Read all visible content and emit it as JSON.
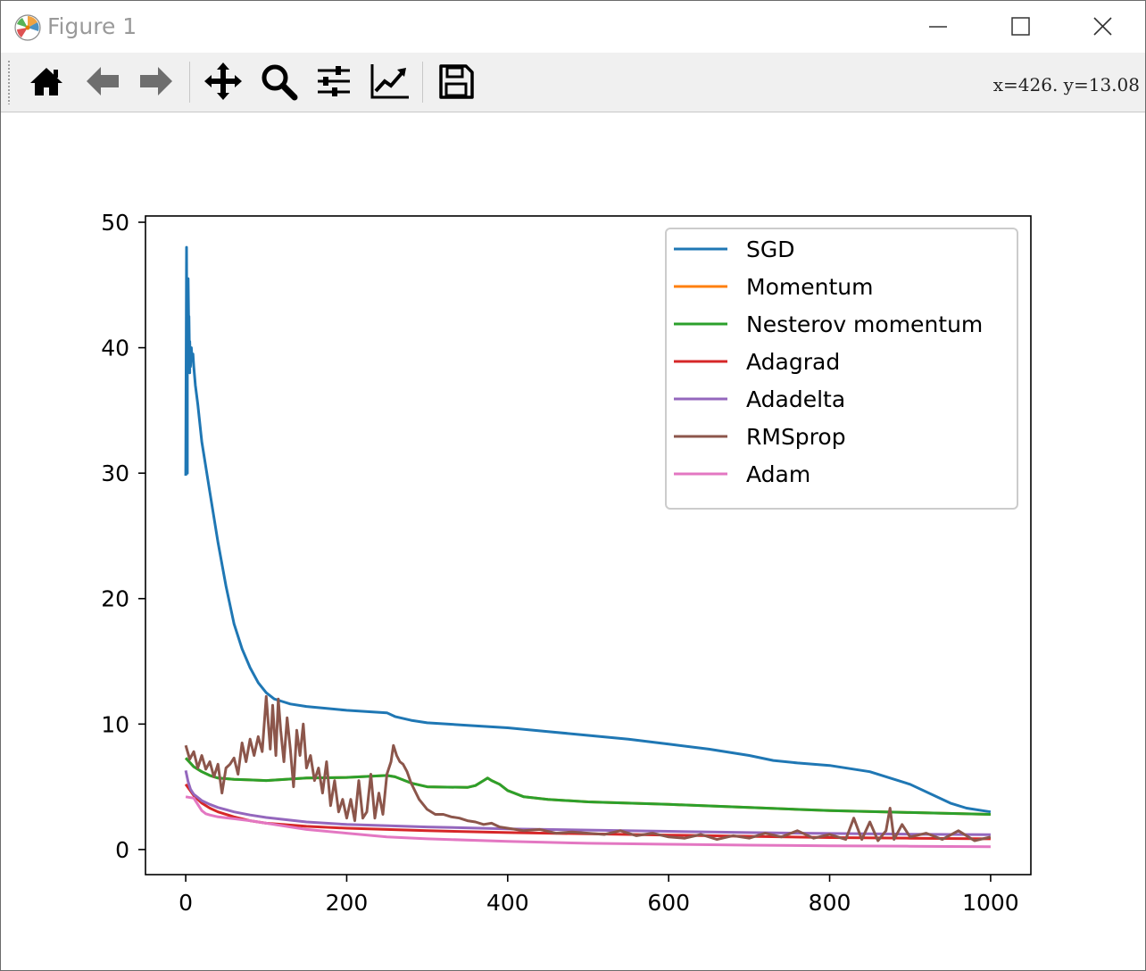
{
  "window": {
    "title": "Figure 1",
    "minimize_icon": "minimize-icon",
    "maximize_icon": "maximize-icon",
    "close_icon": "close-icon"
  },
  "toolbar": {
    "buttons": [
      {
        "name": "home-icon"
      },
      {
        "name": "back-arrow-icon"
      },
      {
        "name": "forward-arrow-icon"
      },
      {
        "name": "pan-move-icon"
      },
      {
        "name": "zoom-magnifier-icon"
      },
      {
        "name": "configure-subplots-icon"
      },
      {
        "name": "edit-axis-icon"
      },
      {
        "name": "save-floppy-icon"
      }
    ],
    "coords": "x=426.  y=13.08"
  },
  "chart_data": {
    "type": "line",
    "title": "",
    "xlabel": "",
    "ylabel": "",
    "xlim": [
      -50,
      1050
    ],
    "ylim": [
      -2,
      50.5
    ],
    "xticks": [
      0,
      200,
      400,
      600,
      800,
      1000
    ],
    "yticks": [
      0,
      10,
      20,
      30,
      40,
      50
    ],
    "grid": false,
    "legend_position": "upper right",
    "series": [
      {
        "name": "SGD",
        "color": "#1f77b4",
        "x": [
          0,
          1,
          2,
          2,
          3,
          3,
          4,
          4,
          5,
          5,
          6,
          7,
          8,
          9,
          10,
          12,
          15,
          20,
          30,
          40,
          50,
          60,
          70,
          80,
          90,
          100,
          110,
          120,
          130,
          150,
          200,
          250,
          260,
          280,
          300,
          350,
          400,
          450,
          500,
          550,
          600,
          650,
          700,
          730,
          760,
          800,
          850,
          900,
          950,
          970,
          990,
          1000
        ],
        "y": [
          29.8,
          48,
          30,
          45.5,
          38,
          45.5,
          40,
          42.5,
          38,
          40.5,
          38.5,
          40,
          39,
          39.5,
          38.5,
          37,
          35.5,
          32.5,
          28.5,
          24.5,
          21,
          18,
          16,
          14.5,
          13.3,
          12.5,
          12,
          11.8,
          11.6,
          11.4,
          11.1,
          10.9,
          10.6,
          10.3,
          10.1,
          9.9,
          9.7,
          9.4,
          9.1,
          8.8,
          8.4,
          8.0,
          7.5,
          7.1,
          6.9,
          6.7,
          6.2,
          5.2,
          3.7,
          3.3,
          3.1,
          3.0
        ]
      },
      {
        "name": "Momentum",
        "color": "#ff7f0e",
        "x": [
          0,
          10,
          20,
          30,
          40,
          50,
          60,
          80,
          100,
          150,
          200,
          250,
          260,
          280,
          300,
          350,
          360,
          370,
          375,
          380,
          390,
          400,
          420,
          450,
          500,
          600,
          700,
          800,
          900,
          1000
        ],
        "y": [
          7.3,
          6.6,
          6.2,
          5.9,
          5.7,
          5.65,
          5.6,
          5.55,
          5.5,
          5.7,
          5.75,
          5.9,
          5.8,
          5.3,
          5.0,
          4.95,
          5.1,
          5.5,
          5.7,
          5.5,
          5.2,
          4.7,
          4.2,
          4.0,
          3.8,
          3.6,
          3.35,
          3.1,
          2.95,
          2.8
        ]
      },
      {
        "name": "Nesterov momentum",
        "color": "#2ca02c",
        "x": [
          0,
          10,
          20,
          30,
          40,
          50,
          60,
          80,
          100,
          150,
          200,
          250,
          260,
          280,
          300,
          350,
          360,
          370,
          375,
          380,
          390,
          400,
          420,
          450,
          500,
          600,
          700,
          800,
          900,
          1000
        ],
        "y": [
          7.3,
          6.6,
          6.2,
          5.9,
          5.7,
          5.65,
          5.6,
          5.55,
          5.5,
          5.7,
          5.75,
          5.9,
          5.8,
          5.3,
          5.0,
          4.95,
          5.1,
          5.5,
          5.7,
          5.5,
          5.2,
          4.7,
          4.2,
          4.0,
          3.8,
          3.6,
          3.35,
          3.1,
          2.95,
          2.8
        ]
      },
      {
        "name": "Adagrad",
        "color": "#d62728",
        "x": [
          0,
          10,
          20,
          30,
          40,
          60,
          80,
          100,
          150,
          200,
          300,
          400,
          500,
          600,
          700,
          800,
          900,
          1000
        ],
        "y": [
          5.2,
          4.3,
          3.7,
          3.3,
          3.0,
          2.6,
          2.3,
          2.1,
          1.85,
          1.7,
          1.5,
          1.35,
          1.25,
          1.15,
          1.05,
          0.95,
          0.9,
          0.85
        ]
      },
      {
        "name": "Adadelta",
        "color": "#9467bd",
        "x": [
          0,
          3,
          6,
          10,
          20,
          30,
          40,
          60,
          80,
          100,
          150,
          200,
          300,
          400,
          500,
          600,
          700,
          800,
          900,
          1000
        ],
        "y": [
          6.3,
          5.4,
          4.8,
          4.4,
          3.9,
          3.6,
          3.35,
          3.0,
          2.75,
          2.55,
          2.2,
          2.0,
          1.8,
          1.65,
          1.55,
          1.45,
          1.35,
          1.28,
          1.22,
          1.18
        ]
      },
      {
        "name": "RMSprop",
        "color": "#8c564b",
        "x": [
          0,
          5,
          10,
          15,
          20,
          25,
          30,
          35,
          40,
          45,
          50,
          55,
          60,
          65,
          70,
          75,
          80,
          85,
          90,
          95,
          100,
          105,
          108,
          112,
          115,
          118,
          122,
          126,
          130,
          134,
          138,
          142,
          146,
          150,
          155,
          160,
          165,
          170,
          175,
          180,
          185,
          190,
          195,
          200,
          205,
          210,
          215,
          220,
          225,
          230,
          235,
          240,
          245,
          250,
          255,
          258,
          262,
          266,
          270,
          275,
          280,
          290,
          300,
          310,
          320,
          330,
          340,
          350,
          360,
          370,
          380,
          390,
          400,
          420,
          440,
          460,
          480,
          500,
          520,
          540,
          560,
          580,
          600,
          620,
          640,
          660,
          680,
          700,
          720,
          740,
          760,
          780,
          800,
          820,
          830,
          840,
          850,
          860,
          870,
          875,
          880,
          890,
          900,
          920,
          940,
          960,
          980,
          1000
        ],
        "y": [
          8.3,
          7.2,
          7.8,
          6.5,
          7.5,
          6.4,
          7.0,
          5.8,
          6.8,
          4.5,
          6.5,
          6.8,
          7.3,
          6.0,
          8.5,
          7.0,
          8.8,
          7.5,
          9.0,
          7.8,
          12.2,
          8.0,
          11.5,
          7.5,
          12.0,
          9.5,
          7.0,
          10.5,
          8.0,
          5.0,
          9.5,
          7.5,
          10.0,
          6.5,
          7.5,
          5.5,
          6.5,
          4.5,
          7.0,
          3.5,
          5.5,
          3.0,
          4.0,
          2.5,
          4.0,
          2.3,
          5.5,
          2.5,
          3.0,
          6.0,
          2.5,
          4.5,
          2.8,
          6.0,
          7.0,
          8.3,
          7.5,
          7.0,
          6.8,
          6.2,
          5.3,
          4.0,
          3.2,
          2.8,
          2.8,
          2.6,
          2.5,
          2.3,
          2.2,
          2.0,
          2.1,
          1.8,
          1.7,
          1.5,
          1.6,
          1.3,
          1.4,
          1.3,
          1.2,
          1.5,
          1.1,
          1.3,
          1.0,
          0.9,
          1.2,
          0.8,
          1.1,
          0.9,
          1.3,
          1.0,
          1.5,
          0.9,
          1.2,
          0.8,
          2.5,
          0.8,
          2.2,
          0.7,
          1.5,
          3.3,
          0.8,
          2.0,
          1.0,
          1.3,
          0.8,
          1.5,
          0.7,
          1.0
        ]
      },
      {
        "name": "Adam",
        "color": "#e377c2",
        "x": [
          0,
          10,
          15,
          20,
          25,
          30,
          40,
          60,
          80,
          100,
          130,
          150,
          200,
          250,
          300,
          400,
          500,
          600,
          700,
          800,
          900,
          1000
        ],
        "y": [
          4.2,
          4.1,
          3.6,
          3.1,
          2.85,
          2.75,
          2.6,
          2.45,
          2.3,
          2.1,
          1.8,
          1.6,
          1.3,
          1.0,
          0.85,
          0.65,
          0.5,
          0.42,
          0.35,
          0.3,
          0.26,
          0.22
        ]
      }
    ]
  }
}
